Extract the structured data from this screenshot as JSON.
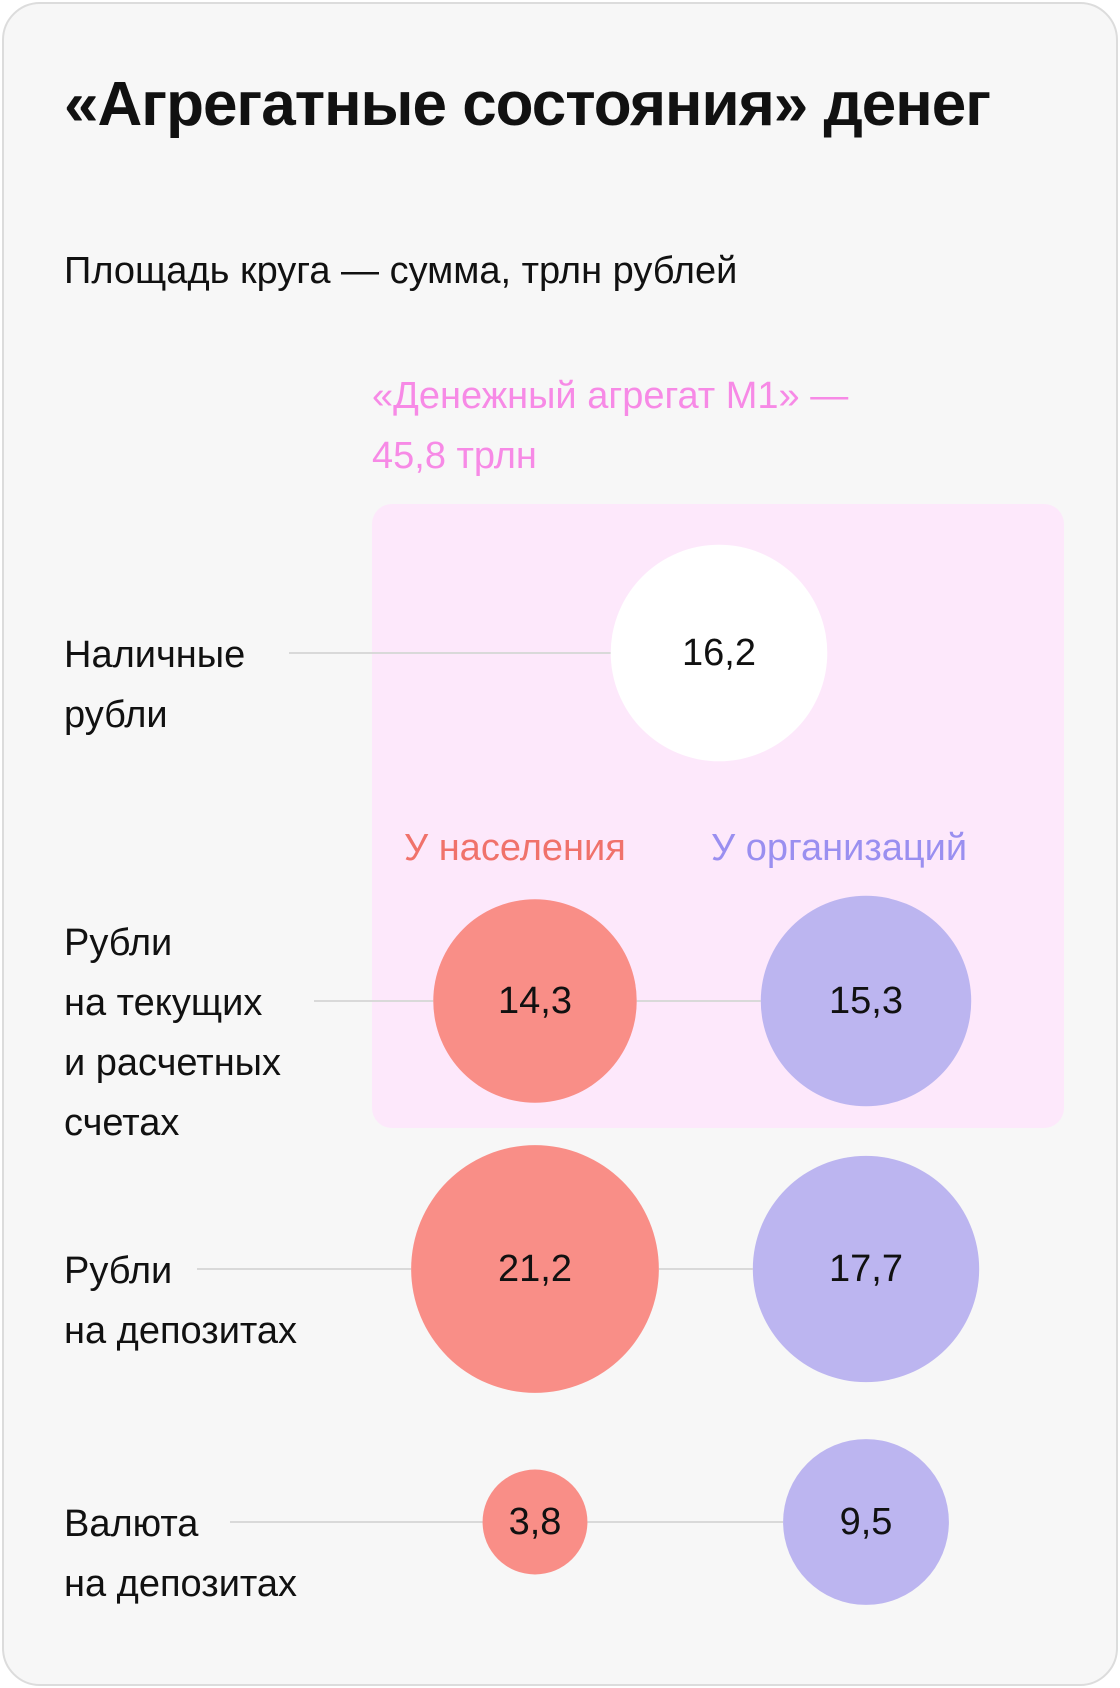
{
  "title": "«Агрегатные состояния» денег",
  "subtitle": "Площадь круга — сумма, трлн рублей",
  "m1": {
    "label_line1": "«Денежный агрегат М1» —",
    "label_line2": "45,8 трлн"
  },
  "columns": [
    {
      "label": "У населения",
      "color": "#f98e87"
    },
    {
      "label": "У организаций",
      "color": "#bcb5f0"
    }
  ],
  "rows": [
    {
      "label_lines": [
        "Наличные",
        "рубли"
      ]
    },
    {
      "label_lines": [
        "Рубли",
        "на текущих",
        "и расчетных",
        "счетах"
      ]
    },
    {
      "label_lines": [
        "Рубли",
        "на депозитах"
      ]
    },
    {
      "label_lines": [
        "Валюта",
        "на депозитах"
      ]
    }
  ],
  "colors": {
    "card_bg": "#f7f7f7",
    "m1_box_bg": "#fde8fb",
    "m1_label": "#f78ae6",
    "households": "#f98e87",
    "households_text": "#f0726b",
    "organizations": "#bcb5f0",
    "organizations_text": "#9a8ff0",
    "cash": "#ffffff",
    "connector_line": "#d9d9d9"
  },
  "chart_data": {
    "type": "bubble",
    "unit": "трлн рублей",
    "encoding": "area",
    "categories": [
      "Наличные рубли",
      "Рубли на текущих и расчетных счетах",
      "Рубли на депозитах",
      "Валюта на депозитах"
    ],
    "series": [
      {
        "name": "Наличные",
        "values": [
          16.2,
          null,
          null,
          null
        ],
        "labels": [
          "16,2",
          "",
          "",
          ""
        ]
      },
      {
        "name": "У населения",
        "values": [
          null,
          14.3,
          21.2,
          3.8
        ],
        "labels": [
          "",
          "14,3",
          "21,2",
          "3,8"
        ]
      },
      {
        "name": "У организаций",
        "values": [
          null,
          15.3,
          17.7,
          9.5
        ],
        "labels": [
          "",
          "15,3",
          "17,7",
          "9,5"
        ]
      }
    ],
    "m1_total": 45.8,
    "m1_includes": [
      "Наличные рубли",
      "Рубли на текущих и расчетных счетах"
    ]
  }
}
